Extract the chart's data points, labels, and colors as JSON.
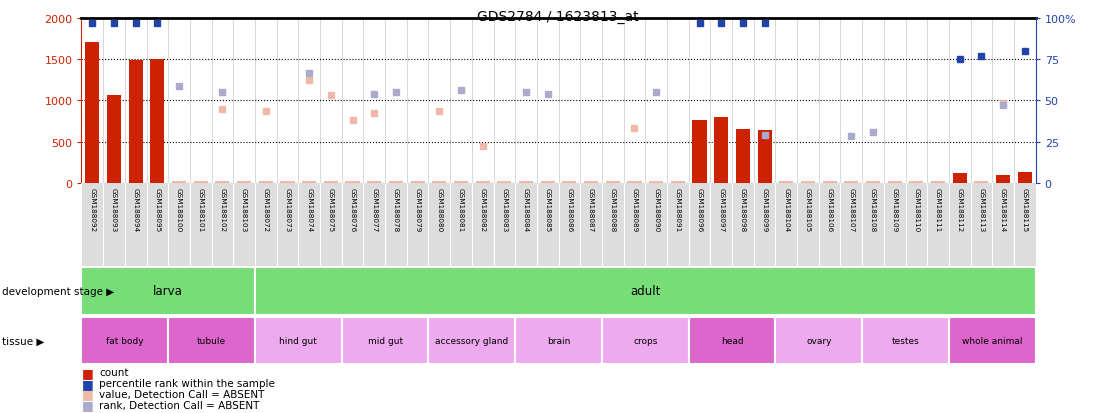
{
  "title": "GDS2784 / 1623813_at",
  "sample_labels": [
    "GSM188092",
    "GSM188093",
    "GSM188094",
    "GSM188095",
    "GSM188100",
    "GSM188101",
    "GSM188102",
    "GSM188103",
    "GSM188072",
    "GSM188073",
    "GSM188074",
    "GSM188075",
    "GSM188076",
    "GSM188077",
    "GSM188078",
    "GSM188079",
    "GSM188080",
    "GSM188081",
    "GSM188082",
    "GSM188083",
    "GSM188084",
    "GSM188085",
    "GSM188086",
    "GSM188087",
    "GSM188088",
    "GSM188089",
    "GSM188090",
    "GSM188091",
    "GSM188096",
    "GSM188097",
    "GSM188098",
    "GSM188099",
    "GSM188104",
    "GSM188105",
    "GSM188106",
    "GSM188107",
    "GSM188108",
    "GSM188109",
    "GSM188110",
    "GSM188111",
    "GSM188112",
    "GSM188113",
    "GSM188114",
    "GSM188115"
  ],
  "bar_values": [
    1700,
    1060,
    1490,
    1500,
    30,
    30,
    30,
    30,
    30,
    30,
    30,
    30,
    30,
    30,
    30,
    30,
    30,
    30,
    30,
    30,
    30,
    30,
    30,
    30,
    30,
    30,
    30,
    30,
    760,
    800,
    650,
    640,
    30,
    30,
    30,
    30,
    30,
    30,
    30,
    30,
    120,
    30,
    100,
    130
  ],
  "bar_absent": [
    false,
    false,
    false,
    false,
    true,
    true,
    true,
    true,
    true,
    true,
    true,
    true,
    true,
    true,
    true,
    true,
    true,
    true,
    true,
    true,
    true,
    true,
    true,
    true,
    true,
    true,
    true,
    true,
    false,
    false,
    false,
    false,
    true,
    true,
    true,
    true,
    true,
    true,
    true,
    true,
    false,
    true,
    false,
    false
  ],
  "rank_values": [
    97,
    97,
    97,
    97,
    null,
    null,
    null,
    null,
    null,
    null,
    null,
    null,
    null,
    null,
    null,
    null,
    null,
    null,
    null,
    null,
    null,
    null,
    null,
    null,
    null,
    null,
    null,
    null,
    97,
    97,
    97,
    97,
    null,
    null,
    null,
    null,
    null,
    null,
    null,
    null,
    75,
    77,
    null,
    80
  ],
  "scatter_value": [
    null,
    null,
    null,
    null,
    null,
    null,
    900,
    null,
    870,
    null,
    1250,
    1070,
    760,
    850,
    null,
    null,
    870,
    null,
    450,
    null,
    null,
    null,
    null,
    null,
    null,
    670,
    null,
    null,
    null,
    null,
    null,
    null,
    null,
    null,
    null,
    null,
    null,
    null,
    null,
    null,
    null,
    null,
    970,
    null
  ],
  "scatter_rank": [
    null,
    null,
    null,
    null,
    1170,
    null,
    1100,
    null,
    null,
    null,
    1330,
    null,
    null,
    1080,
    1100,
    null,
    null,
    1130,
    null,
    null,
    1100,
    1080,
    null,
    null,
    null,
    null,
    1100,
    null,
    null,
    null,
    null,
    580,
    null,
    null,
    null,
    570,
    620,
    null,
    null,
    null,
    null,
    null,
    950,
    null
  ],
  "dev_groups": [
    {
      "label": "larva",
      "start": 0,
      "end": 8
    },
    {
      "label": "adult",
      "start": 8,
      "end": 44
    }
  ],
  "tissue_groups": [
    {
      "label": "fat body",
      "start": 0,
      "end": 4,
      "dark": true
    },
    {
      "label": "tubule",
      "start": 4,
      "end": 8,
      "dark": true
    },
    {
      "label": "hind gut",
      "start": 8,
      "end": 12,
      "dark": false
    },
    {
      "label": "mid gut",
      "start": 12,
      "end": 16,
      "dark": false
    },
    {
      "label": "accessory gland",
      "start": 16,
      "end": 20,
      "dark": false
    },
    {
      "label": "brain",
      "start": 20,
      "end": 24,
      "dark": false
    },
    {
      "label": "crops",
      "start": 24,
      "end": 28,
      "dark": false
    },
    {
      "label": "head",
      "start": 28,
      "end": 32,
      "dark": true
    },
    {
      "label": "ovary",
      "start": 32,
      "end": 36,
      "dark": false
    },
    {
      "label": "testes",
      "start": 36,
      "end": 40,
      "dark": false
    },
    {
      "label": "whole animal",
      "start": 40,
      "end": 44,
      "dark": true
    }
  ],
  "ylim_left": [
    0,
    2000
  ],
  "ylim_right": [
    0,
    100
  ],
  "yticks_left": [
    0,
    500,
    1000,
    1500,
    2000
  ],
  "yticks_right": [
    0,
    25,
    50,
    75,
    100
  ],
  "bar_color": "#CC2200",
  "bar_absent_color": "#F0B8A8",
  "dot_color": "#2244AA",
  "dot_absent_color": "#AAAACC",
  "green_light": "#88DD88",
  "green_dark": "#66CC66",
  "tissue_dark": "#DD66CC",
  "tissue_light": "#EEAAEE",
  "label_bg": "#DDDDDD",
  "legend_items": [
    {
      "label": "count",
      "color": "#CC2200"
    },
    {
      "label": "percentile rank within the sample",
      "color": "#2244AA"
    },
    {
      "label": "value, Detection Call = ABSENT",
      "color": "#F0B8A8"
    },
    {
      "label": "rank, Detection Call = ABSENT",
      "color": "#AAAACC"
    }
  ]
}
